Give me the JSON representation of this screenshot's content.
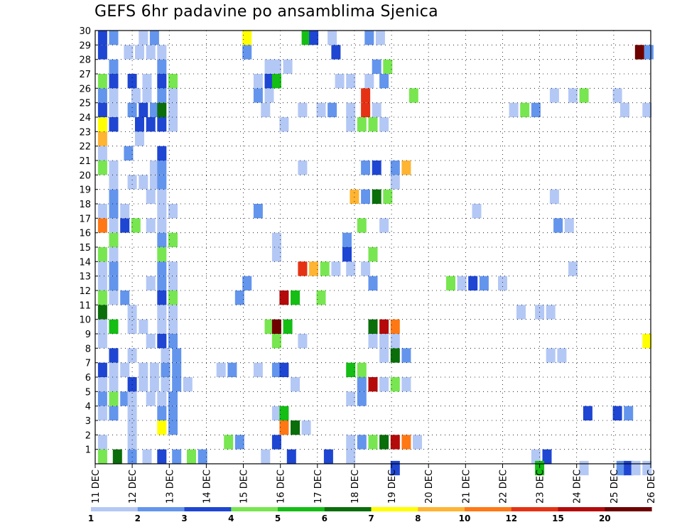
{
  "chart_data": {
    "type": "heatmap",
    "title": "GEFS 6hr padavine po ansamblima Sjenica",
    "x_ticks": [
      "11 DEC",
      "12 DEC",
      "13 DEC",
      "14 DEC",
      "15 DEC",
      "16 DEC",
      "17 DEC",
      "18 DEC",
      "19 DEC",
      "20 DEC",
      "21 DEC",
      "22 DEC",
      "23 DEC",
      "24 DEC",
      "25 DEC",
      "26 DEC"
    ],
    "y_ticks": [
      "1",
      "2",
      "3",
      "4",
      "5",
      "6",
      "7",
      "8",
      "9",
      "10",
      "11",
      "12",
      "13",
      "14",
      "15",
      "16",
      "17",
      "18",
      "19",
      "20",
      "21",
      "22",
      "23",
      "24",
      "25",
      "26",
      "27",
      "28",
      "29",
      "30"
    ],
    "grid": true,
    "colorbar": {
      "levels": [
        "1",
        "2",
        "3",
        "4",
        "5",
        "6",
        "7",
        "8",
        "10",
        "12",
        "15",
        "20"
      ],
      "colors": [
        "#b4c8f5",
        "#6495ed",
        "#1e46d2",
        "#78e650",
        "#14be14",
        "#0a6e0a",
        "#ffff00",
        "#ffb432",
        "#ff7814",
        "#e63214",
        "#b40a0a",
        "#6e0000"
      ]
    },
    "cells": [
      [
        0.2,
        1,
        4
      ],
      [
        0.6,
        1,
        6
      ],
      [
        1,
        1,
        2
      ],
      [
        1.4,
        1,
        1
      ],
      [
        1.8,
        1,
        3
      ],
      [
        2.2,
        1,
        2
      ],
      [
        2.6,
        1,
        4
      ],
      [
        2.9,
        1,
        2
      ],
      [
        4.6,
        1,
        1
      ],
      [
        5.3,
        1,
        3
      ],
      [
        6.3,
        1,
        3
      ],
      [
        6.9,
        1,
        1
      ],
      [
        11.9,
        1,
        1
      ],
      [
        12.2,
        1,
        3
      ],
      [
        0.2,
        2,
        1
      ],
      [
        1,
        2,
        1
      ],
      [
        3.6,
        2,
        4
      ],
      [
        3.9,
        2,
        2
      ],
      [
        4.9,
        2,
        3
      ],
      [
        6.9,
        2,
        1
      ],
      [
        7.2,
        2,
        2
      ],
      [
        7.5,
        2,
        4
      ],
      [
        7.8,
        2,
        6
      ],
      [
        8.1,
        2,
        11
      ],
      [
        8.4,
        2,
        9
      ],
      [
        8.7,
        2,
        1
      ],
      [
        1,
        3,
        1
      ],
      [
        1.8,
        3,
        7
      ],
      [
        2.1,
        3,
        2
      ],
      [
        5.1,
        3,
        9
      ],
      [
        5.4,
        3,
        6
      ],
      [
        5.7,
        3,
        1
      ],
      [
        0.2,
        4,
        1
      ],
      [
        0.5,
        4,
        2
      ],
      [
        1,
        4,
        1
      ],
      [
        1.8,
        4,
        2
      ],
      [
        2.1,
        4,
        2
      ],
      [
        4.9,
        4,
        1
      ],
      [
        5.1,
        4,
        5
      ],
      [
        13.3,
        4,
        3
      ],
      [
        14.1,
        4,
        3
      ],
      [
        14.4,
        4,
        2
      ],
      [
        0.2,
        5,
        2
      ],
      [
        0.5,
        5,
        4
      ],
      [
        0.8,
        5,
        2
      ],
      [
        1,
        5,
        1
      ],
      [
        1.5,
        5,
        1
      ],
      [
        1.8,
        5,
        1
      ],
      [
        2.1,
        5,
        2
      ],
      [
        6.9,
        5,
        1
      ],
      [
        7.2,
        5,
        2
      ],
      [
        0.2,
        6,
        1
      ],
      [
        0.5,
        6,
        1
      ],
      [
        1,
        6,
        3
      ],
      [
        1.3,
        6,
        1
      ],
      [
        1.6,
        6,
        1
      ],
      [
        1.9,
        6,
        1
      ],
      [
        2.2,
        6,
        2
      ],
      [
        2.5,
        6,
        1
      ],
      [
        5.4,
        6,
        1
      ],
      [
        7.2,
        6,
        2
      ],
      [
        7.5,
        6,
        11
      ],
      [
        7.8,
        6,
        1
      ],
      [
        8.1,
        6,
        4
      ],
      [
        8.4,
        6,
        1
      ],
      [
        0.2,
        7,
        3
      ],
      [
        0.5,
        7,
        1
      ],
      [
        0.8,
        7,
        1
      ],
      [
        1.3,
        7,
        1
      ],
      [
        1.6,
        7,
        1
      ],
      [
        1.9,
        7,
        2
      ],
      [
        2.2,
        7,
        2
      ],
      [
        3.4,
        7,
        1
      ],
      [
        3.7,
        7,
        2
      ],
      [
        4.4,
        7,
        1
      ],
      [
        4.9,
        7,
        2
      ],
      [
        5.1,
        7,
        3
      ],
      [
        6.9,
        7,
        5
      ],
      [
        7.2,
        7,
        4
      ],
      [
        0.5,
        8,
        3
      ],
      [
        1,
        8,
        1
      ],
      [
        1.9,
        8,
        1
      ],
      [
        2.2,
        8,
        2
      ],
      [
        7.8,
        8,
        1
      ],
      [
        8.1,
        8,
        6
      ],
      [
        8.4,
        8,
        2
      ],
      [
        12.3,
        8,
        1
      ],
      [
        12.6,
        8,
        1
      ],
      [
        0.2,
        9,
        1
      ],
      [
        1.5,
        9,
        1
      ],
      [
        1.8,
        9,
        3
      ],
      [
        2.1,
        9,
        2
      ],
      [
        4.9,
        9,
        4
      ],
      [
        5.6,
        9,
        1
      ],
      [
        7.5,
        9,
        1
      ],
      [
        7.8,
        9,
        1
      ],
      [
        8.1,
        9,
        1
      ],
      [
        14.9,
        9,
        7
      ],
      [
        0.2,
        10,
        1
      ],
      [
        0.5,
        10,
        5
      ],
      [
        1,
        10,
        1
      ],
      [
        1.3,
        10,
        1
      ],
      [
        1.8,
        10,
        1
      ],
      [
        2.1,
        10,
        1
      ],
      [
        4.7,
        10,
        4
      ],
      [
        4.9,
        10,
        12
      ],
      [
        5.2,
        10,
        5
      ],
      [
        7.5,
        10,
        6
      ],
      [
        7.8,
        10,
        11
      ],
      [
        8.1,
        10,
        9
      ],
      [
        0.2,
        11,
        6
      ],
      [
        1,
        11,
        1
      ],
      [
        1.8,
        11,
        1
      ],
      [
        2.1,
        11,
        1
      ],
      [
        11.5,
        11,
        1
      ],
      [
        12,
        11,
        1
      ],
      [
        12.3,
        11,
        1
      ],
      [
        0.2,
        12,
        4
      ],
      [
        0.5,
        12,
        1
      ],
      [
        0.8,
        12,
        2
      ],
      [
        1.8,
        12,
        3
      ],
      [
        2.1,
        12,
        4
      ],
      [
        3.9,
        12,
        2
      ],
      [
        5.1,
        12,
        11
      ],
      [
        5.4,
        12,
        5
      ],
      [
        6.1,
        12,
        4
      ],
      [
        0.2,
        13,
        1
      ],
      [
        0.5,
        13,
        2
      ],
      [
        1.5,
        13,
        1
      ],
      [
        1.8,
        13,
        2
      ],
      [
        2.1,
        13,
        1
      ],
      [
        4.1,
        13,
        2
      ],
      [
        7.5,
        13,
        2
      ],
      [
        9.6,
        13,
        4
      ],
      [
        9.9,
        13,
        1
      ],
      [
        10.2,
        13,
        3
      ],
      [
        10.5,
        13,
        2
      ],
      [
        11,
        13,
        1
      ],
      [
        0.2,
        14,
        1
      ],
      [
        0.5,
        14,
        2
      ],
      [
        1.8,
        14,
        2
      ],
      [
        2.1,
        14,
        1
      ],
      [
        5.6,
        14,
        10
      ],
      [
        5.9,
        14,
        8
      ],
      [
        6.2,
        14,
        4
      ],
      [
        6.5,
        14,
        1
      ],
      [
        6.9,
        14,
        1
      ],
      [
        7.3,
        14,
        1
      ],
      [
        12.9,
        14,
        1
      ],
      [
        0.2,
        15,
        4
      ],
      [
        0.5,
        15,
        1
      ],
      [
        1.8,
        15,
        4
      ],
      [
        4.9,
        15,
        1
      ],
      [
        6.8,
        15,
        3
      ],
      [
        7.5,
        15,
        4
      ],
      [
        0.5,
        16,
        4
      ],
      [
        1.8,
        16,
        2
      ],
      [
        2.1,
        16,
        4
      ],
      [
        4.9,
        16,
        1
      ],
      [
        6.8,
        16,
        2
      ],
      [
        0.2,
        17,
        9
      ],
      [
        0.5,
        17,
        1
      ],
      [
        0.8,
        17,
        3
      ],
      [
        1.1,
        17,
        4
      ],
      [
        1.5,
        17,
        1
      ],
      [
        1.8,
        17,
        1
      ],
      [
        7.2,
        17,
        4
      ],
      [
        7.8,
        17,
        1
      ],
      [
        12.5,
        17,
        2
      ],
      [
        12.8,
        17,
        1
      ],
      [
        0.2,
        18,
        1
      ],
      [
        0.5,
        18,
        2
      ],
      [
        0.8,
        18,
        1
      ],
      [
        1.8,
        18,
        1
      ],
      [
        2.1,
        18,
        1
      ],
      [
        4.4,
        18,
        2
      ],
      [
        10.3,
        18,
        1
      ],
      [
        0.5,
        19,
        2
      ],
      [
        1.5,
        19,
        1
      ],
      [
        1.8,
        19,
        1
      ],
      [
        7,
        19,
        8
      ],
      [
        7.3,
        19,
        2
      ],
      [
        7.6,
        19,
        6
      ],
      [
        7.9,
        19,
        4
      ],
      [
        12.4,
        19,
        1
      ],
      [
        0.5,
        20,
        1
      ],
      [
        1,
        20,
        1
      ],
      [
        1.3,
        20,
        1
      ],
      [
        1.6,
        20,
        1
      ],
      [
        1.8,
        20,
        2
      ],
      [
        8.1,
        20,
        1
      ],
      [
        0.2,
        21,
        4
      ],
      [
        0.5,
        21,
        1
      ],
      [
        1.6,
        21,
        1
      ],
      [
        1.8,
        21,
        2
      ],
      [
        5.6,
        21,
        1
      ],
      [
        7.3,
        21,
        2
      ],
      [
        7.6,
        21,
        3
      ],
      [
        8.1,
        21,
        2
      ],
      [
        8.4,
        21,
        8
      ],
      [
        0.2,
        22,
        1
      ],
      [
        0.9,
        22,
        2
      ],
      [
        1.8,
        22,
        3
      ],
      [
        0.2,
        23,
        8
      ],
      [
        1.2,
        23,
        1
      ],
      [
        0.2,
        24,
        7
      ],
      [
        0.5,
        24,
        3
      ],
      [
        1.2,
        24,
        3
      ],
      [
        1.5,
        24,
        3
      ],
      [
        1.8,
        24,
        3
      ],
      [
        2.1,
        24,
        1
      ],
      [
        5.1,
        24,
        1
      ],
      [
        6.9,
        24,
        1
      ],
      [
        7.2,
        24,
        4
      ],
      [
        7.5,
        24,
        4
      ],
      [
        7.8,
        24,
        1
      ],
      [
        0.2,
        25,
        3
      ],
      [
        0.5,
        25,
        1
      ],
      [
        1,
        25,
        2
      ],
      [
        1.3,
        25,
        3
      ],
      [
        1.6,
        25,
        2
      ],
      [
        1.8,
        25,
        6
      ],
      [
        2.1,
        25,
        1
      ],
      [
        4.6,
        25,
        1
      ],
      [
        5.6,
        25,
        1
      ],
      [
        6.1,
        25,
        1
      ],
      [
        6.4,
        25,
        2
      ],
      [
        6.9,
        25,
        1
      ],
      [
        7.3,
        25,
        10
      ],
      [
        7.6,
        25,
        1
      ],
      [
        11.3,
        25,
        1
      ],
      [
        11.6,
        25,
        4
      ],
      [
        11.9,
        25,
        2
      ],
      [
        14.3,
        25,
        1
      ],
      [
        14.9,
        25,
        1
      ],
      [
        0.2,
        26,
        2
      ],
      [
        0.5,
        26,
        1
      ],
      [
        1.1,
        26,
        1
      ],
      [
        1.4,
        26,
        1
      ],
      [
        1.8,
        26,
        2
      ],
      [
        2.1,
        26,
        1
      ],
      [
        4.4,
        26,
        2
      ],
      [
        4.7,
        26,
        1
      ],
      [
        7.3,
        26,
        10
      ],
      [
        8.6,
        26,
        4
      ],
      [
        12.4,
        26,
        1
      ],
      [
        12.9,
        26,
        1
      ],
      [
        13.2,
        26,
        4
      ],
      [
        14.1,
        26,
        1
      ],
      [
        0.2,
        27,
        4
      ],
      [
        0.5,
        27,
        3
      ],
      [
        1,
        27,
        3
      ],
      [
        1.4,
        27,
        1
      ],
      [
        1.8,
        27,
        3
      ],
      [
        2.1,
        27,
        4
      ],
      [
        4.4,
        27,
        1
      ],
      [
        4.7,
        27,
        3
      ],
      [
        4.9,
        27,
        5
      ],
      [
        6.6,
        27,
        1
      ],
      [
        6.9,
        27,
        1
      ],
      [
        7.4,
        27,
        1
      ],
      [
        7.8,
        27,
        2
      ],
      [
        0.5,
        28,
        2
      ],
      [
        1.8,
        28,
        2
      ],
      [
        4.7,
        28,
        1
      ],
      [
        4.9,
        28,
        1
      ],
      [
        5.2,
        28,
        1
      ],
      [
        7.6,
        28,
        2
      ],
      [
        7.9,
        28,
        4
      ],
      [
        0.2,
        29,
        3
      ],
      [
        0.9,
        29,
        1
      ],
      [
        1.2,
        29,
        1
      ],
      [
        1.5,
        29,
        1
      ],
      [
        1.8,
        29,
        1
      ],
      [
        4.1,
        29,
        2
      ],
      [
        6.5,
        29,
        3
      ],
      [
        14.7,
        29,
        12
      ],
      [
        14.95,
        29,
        2
      ],
      [
        0.2,
        30,
        3
      ],
      [
        0.5,
        30,
        2
      ],
      [
        1.3,
        30,
        1
      ],
      [
        1.6,
        30,
        2
      ],
      [
        4.1,
        30,
        7
      ],
      [
        5.7,
        30,
        5
      ],
      [
        5.9,
        30,
        3
      ],
      [
        6.4,
        30,
        1
      ],
      [
        7.4,
        30,
        2
      ],
      [
        7.7,
        30,
        1
      ],
      [
        8.1,
        0.2,
        3
      ],
      [
        12,
        0.2,
        5
      ],
      [
        13.2,
        0.2,
        1
      ],
      [
        14.2,
        0.2,
        2
      ],
      [
        14.4,
        0.2,
        3
      ],
      [
        14.6,
        0.2,
        1
      ],
      [
        14.9,
        0.2,
        1
      ]
    ]
  }
}
